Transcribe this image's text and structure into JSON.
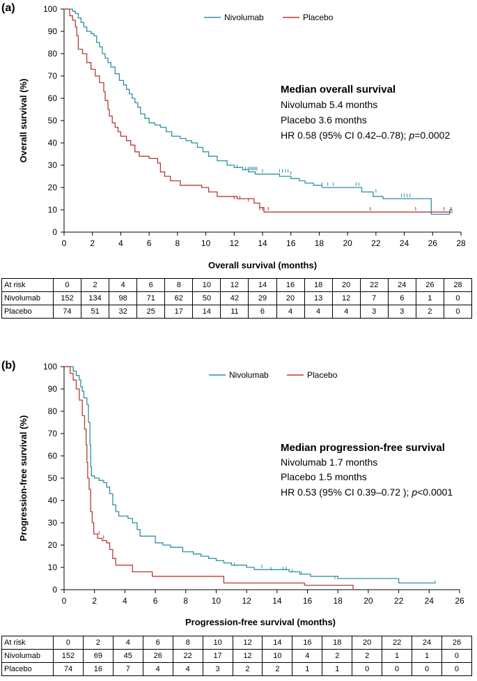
{
  "colors": {
    "nivolumab": "#2e8fa5",
    "placebo": "#b63a35"
  },
  "chart_data": [
    {
      "type": "line",
      "panel": "(a)",
      "xlabel": "Overall survival (months)",
      "ylabel": "Overall survival (%)",
      "xlim": [
        0,
        28
      ],
      "ylim": [
        0,
        100
      ],
      "xticks": [
        "0",
        "2",
        "4",
        "6",
        "8",
        "10",
        "12",
        "14",
        "16",
        "18",
        "20",
        "22",
        "24",
        "26",
        "28"
      ],
      "yticks": [
        "0",
        "10",
        "20",
        "30",
        "40",
        "50",
        "60",
        "70",
        "80",
        "90",
        "100"
      ],
      "legend": [
        "Nivolumab",
        "Placebo"
      ],
      "annotation": {
        "title": "Median overall survival",
        "line1": "Nivolumab 5.4 months",
        "line2": "Placebo 3.6 months",
        "line3_pre": "HR 0.58 (95% CI 0.42–0.78); ",
        "line3_p": "p",
        "line3_post": "=0.0002"
      },
      "series": [
        {
          "name": "Nivolumab",
          "points": [
            [
              0,
              100
            ],
            [
              0.6,
              99
            ],
            [
              0.8,
              98
            ],
            [
              1.0,
              96
            ],
            [
              1.2,
              94
            ],
            [
              1.4,
              92
            ],
            [
              1.6,
              90
            ],
            [
              1.9,
              89
            ],
            [
              2.1,
              88
            ],
            [
              2.3,
              85
            ],
            [
              2.5,
              83
            ],
            [
              2.7,
              80
            ],
            [
              2.9,
              78
            ],
            [
              3.1,
              76
            ],
            [
              3.3,
              74
            ],
            [
              3.6,
              71
            ],
            [
              3.9,
              68
            ],
            [
              4.2,
              66
            ],
            [
              4.4,
              64
            ],
            [
              4.6,
              62
            ],
            [
              4.8,
              60
            ],
            [
              5.0,
              58
            ],
            [
              5.2,
              56
            ],
            [
              5.4,
              53
            ],
            [
              5.7,
              51
            ],
            [
              6.0,
              49
            ],
            [
              6.4,
              48
            ],
            [
              6.8,
              47
            ],
            [
              7.2,
              45
            ],
            [
              7.6,
              43
            ],
            [
              8.2,
              42
            ],
            [
              8.6,
              41
            ],
            [
              9.0,
              40
            ],
            [
              9.4,
              38
            ],
            [
              9.8,
              36
            ],
            [
              10.2,
              34
            ],
            [
              10.8,
              32
            ],
            [
              11.5,
              30
            ],
            [
              12.0,
              29
            ],
            [
              12.6,
              28
            ],
            [
              13.0,
              27
            ],
            [
              13.5,
              26
            ],
            [
              14.0,
              26
            ],
            [
              15.2,
              25
            ],
            [
              16.0,
              24
            ],
            [
              16.6,
              23
            ],
            [
              17.0,
              22
            ],
            [
              17.6,
              21
            ],
            [
              18.2,
              20
            ],
            [
              19.5,
              20
            ],
            [
              20.8,
              20
            ],
            [
              21.0,
              18
            ],
            [
              21.5,
              18
            ],
            [
              21.8,
              16
            ],
            [
              22.5,
              15
            ],
            [
              25.9,
              15
            ],
            [
              25.9,
              8
            ],
            [
              27.0,
              8
            ],
            [
              27.2,
              10
            ],
            [
              27.4,
              10
            ]
          ],
          "censors": [
            [
              12.2,
              29
            ],
            [
              12.6,
              28
            ],
            [
              12.8,
              28
            ],
            [
              13.0,
              28
            ],
            [
              13.1,
              28
            ],
            [
              13.2,
              28
            ],
            [
              13.3,
              28
            ],
            [
              13.4,
              28
            ],
            [
              13.5,
              28
            ],
            [
              13.6,
              28
            ],
            [
              14.0,
              27
            ],
            [
              15.2,
              27
            ],
            [
              15.4,
              27
            ],
            [
              15.6,
              27
            ],
            [
              15.8,
              27
            ],
            [
              16.0,
              26
            ],
            [
              18.2,
              21
            ],
            [
              18.6,
              21
            ],
            [
              19.0,
              21
            ],
            [
              20.6,
              21
            ],
            [
              20.8,
              21
            ],
            [
              22.0,
              18
            ],
            [
              23.8,
              16
            ],
            [
              24.0,
              16
            ],
            [
              24.2,
              16
            ],
            [
              24.4,
              16
            ],
            [
              27.3,
              10
            ]
          ]
        },
        {
          "name": "Placebo",
          "points": [
            [
              0,
              100
            ],
            [
              0.4,
              97
            ],
            [
              0.6,
              95
            ],
            [
              0.8,
              92
            ],
            [
              0.9,
              88
            ],
            [
              1.0,
              82
            ],
            [
              1.3,
              80
            ],
            [
              1.6,
              76
            ],
            [
              1.9,
              73
            ],
            [
              2.2,
              70
            ],
            [
              2.5,
              67
            ],
            [
              2.8,
              63
            ],
            [
              2.9,
              59
            ],
            [
              3.1,
              55
            ],
            [
              3.2,
              52
            ],
            [
              3.4,
              49
            ],
            [
              3.6,
              47
            ],
            [
              3.8,
              45
            ],
            [
              4.0,
              43
            ],
            [
              4.4,
              41
            ],
            [
              4.7,
              39
            ],
            [
              5.0,
              36
            ],
            [
              5.3,
              34
            ],
            [
              6.0,
              33
            ],
            [
              6.6,
              31
            ],
            [
              6.8,
              27
            ],
            [
              7.1,
              25
            ],
            [
              7.5,
              23
            ],
            [
              8.2,
              21
            ],
            [
              9.7,
              20
            ],
            [
              10.2,
              18
            ],
            [
              10.8,
              16
            ],
            [
              12.2,
              15
            ],
            [
              13.4,
              13
            ],
            [
              13.8,
              11
            ],
            [
              14.1,
              9
            ],
            [
              27.4,
              9
            ]
          ],
          "censors": [
            [
              12.0,
              15
            ],
            [
              12.4,
              15
            ],
            [
              13.0,
              14
            ],
            [
              13.8,
              10
            ],
            [
              14.0,
              10
            ],
            [
              14.4,
              10
            ],
            [
              21.6,
              10
            ],
            [
              24.8,
              10
            ],
            [
              26.8,
              10
            ],
            [
              27.3,
              10
            ]
          ]
        }
      ],
      "risk_table": {
        "header": [
          "At risk",
          "0",
          "2",
          "4",
          "6",
          "8",
          "10",
          "12",
          "14",
          "16",
          "18",
          "20",
          "22",
          "24",
          "26",
          "28"
        ],
        "rows": [
          [
            "Nivolumab",
            "152",
            "134",
            "98",
            "71",
            "62",
            "50",
            "42",
            "29",
            "20",
            "13",
            "12",
            "7",
            "6",
            "1",
            "0"
          ],
          [
            "Placebo",
            "74",
            "51",
            "32",
            "25",
            "17",
            "14",
            "11",
            "6",
            "4",
            "4",
            "4",
            "3",
            "3",
            "2",
            "0"
          ]
        ]
      }
    },
    {
      "type": "line",
      "panel": "(b)",
      "xlabel": "Progression-free survival (months)",
      "ylabel": "Progression-free survival (%)",
      "xlim": [
        0,
        26
      ],
      "ylim": [
        0,
        100
      ],
      "xticks": [
        "0",
        "2",
        "4",
        "6",
        "8",
        "10",
        "12",
        "14",
        "16",
        "18",
        "20",
        "22",
        "24",
        "26"
      ],
      "yticks": [
        "0",
        "10",
        "20",
        "30",
        "40",
        "50",
        "60",
        "70",
        "80",
        "90",
        "100"
      ],
      "legend": [
        "Nivolumab",
        "Placebo"
      ],
      "annotation": {
        "title": "Median progression-free survival",
        "line1": "Nivolumab 1.7 months",
        "line2": "Placebo 1.5 months",
        "line3_pre": "HR 0.53 (95% CI 0.39–0.72 ); ",
        "line3_p": "p",
        "line3_post": "<0.0001"
      },
      "series": [
        {
          "name": "Nivolumab",
          "points": [
            [
              0,
              100
            ],
            [
              0.6,
              98
            ],
            [
              0.8,
              96
            ],
            [
              1.0,
              94
            ],
            [
              1.1,
              91
            ],
            [
              1.2,
              89
            ],
            [
              1.3,
              86
            ],
            [
              1.5,
              83
            ],
            [
              1.6,
              75
            ],
            [
              1.7,
              65
            ],
            [
              1.75,
              55
            ],
            [
              1.8,
              51
            ],
            [
              2.0,
              50
            ],
            [
              2.3,
              49
            ],
            [
              2.6,
              48
            ],
            [
              2.8,
              46
            ],
            [
              3.0,
              43
            ],
            [
              3.2,
              38
            ],
            [
              3.4,
              35
            ],
            [
              3.6,
              33
            ],
            [
              4.2,
              32
            ],
            [
              4.5,
              30
            ],
            [
              4.8,
              27
            ],
            [
              5.0,
              24
            ],
            [
              6.0,
              21
            ],
            [
              6.5,
              20
            ],
            [
              7.0,
              19
            ],
            [
              7.8,
              17
            ],
            [
              8.5,
              16
            ],
            [
              9.0,
              15
            ],
            [
              9.5,
              14
            ],
            [
              10.0,
              13
            ],
            [
              10.5,
              12
            ],
            [
              11.0,
              11
            ],
            [
              12.0,
              10
            ],
            [
              12.5,
              9
            ],
            [
              14.0,
              9
            ],
            [
              14.8,
              8
            ],
            [
              15.5,
              7
            ],
            [
              16.2,
              6
            ],
            [
              18.0,
              5
            ],
            [
              22.0,
              5
            ],
            [
              22.0,
              3
            ],
            [
              24.4,
              3
            ]
          ],
          "censors": [
            [
              11.2,
              11
            ],
            [
              13.0,
              10
            ],
            [
              13.6,
              9
            ],
            [
              14.4,
              9
            ],
            [
              14.6,
              9
            ],
            [
              15.0,
              8
            ],
            [
              15.6,
              7
            ],
            [
              17.8,
              5
            ],
            [
              24.4,
              3
            ]
          ]
        },
        {
          "name": "Placebo",
          "points": [
            [
              0,
              100
            ],
            [
              0.4,
              97
            ],
            [
              0.6,
              94
            ],
            [
              0.8,
              90
            ],
            [
              1.0,
              85
            ],
            [
              1.2,
              78
            ],
            [
              1.35,
              72
            ],
            [
              1.45,
              65
            ],
            [
              1.5,
              57
            ],
            [
              1.55,
              50
            ],
            [
              1.65,
              45
            ],
            [
              1.75,
              35
            ],
            [
              1.85,
              30
            ],
            [
              1.95,
              25
            ],
            [
              2.2,
              23
            ],
            [
              2.5,
              22
            ],
            [
              2.8,
              21
            ],
            [
              3.0,
              18
            ],
            [
              3.2,
              14
            ],
            [
              3.4,
              11
            ],
            [
              4.5,
              8
            ],
            [
              5.8,
              6
            ],
            [
              9.8,
              6
            ],
            [
              10.5,
              3
            ],
            [
              15.6,
              3
            ],
            [
              15.8,
              2
            ],
            [
              18.9,
              2
            ],
            [
              19.0,
              0
            ]
          ],
          "censors": [
            [
              2.3,
              25
            ],
            [
              2.6,
              23
            ]
          ]
        }
      ],
      "risk_table": {
        "header": [
          "At risk",
          "0",
          "2",
          "4",
          "6",
          "8",
          "10",
          "12",
          "14",
          "16",
          "18",
          "20",
          "22",
          "24",
          "26"
        ],
        "rows": [
          [
            "Nivolumab",
            "152",
            "69",
            "45",
            "26",
            "22",
            "17",
            "12",
            "10",
            "4",
            "2",
            "2",
            "1",
            "1",
            "0"
          ],
          [
            "Placebo",
            "74",
            "16",
            "7",
            "4",
            "4",
            "3",
            "2",
            "2",
            "1",
            "1",
            "0",
            "0",
            "0",
            "0"
          ]
        ]
      }
    }
  ]
}
